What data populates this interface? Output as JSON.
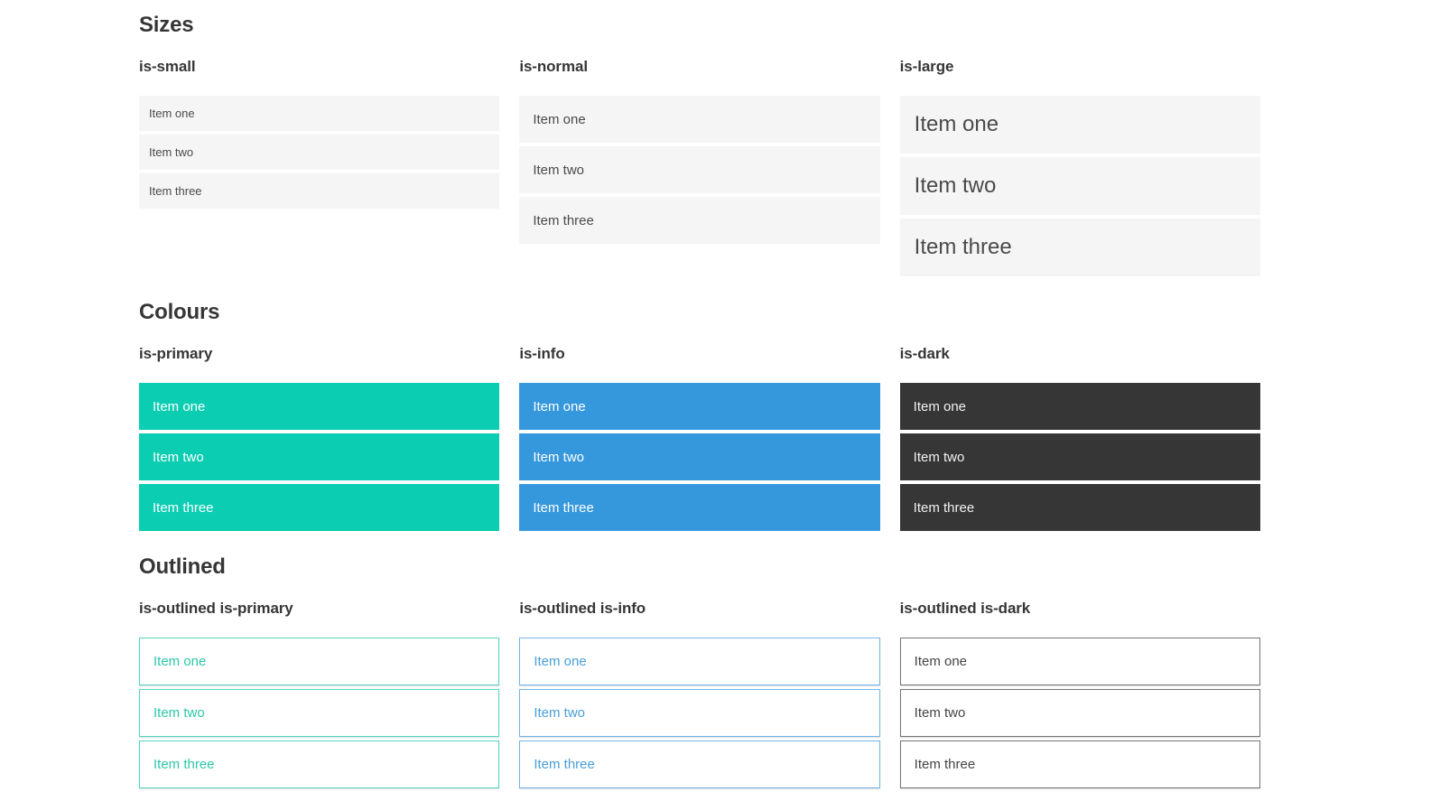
{
  "colors": {
    "primary": "#0acdb2",
    "info": "#3698dc",
    "dark": "#363636",
    "light_item_bg": "#f5f5f5",
    "heading_text": "#363636",
    "item_text": "#4a4a4a",
    "outlined_primary_border": "#56d6c0",
    "outlined_primary_text": "#2cc8a8",
    "outlined_info_border": "#74b6e8",
    "outlined_info_text": "#4a9eda",
    "outlined_dark_border": "#757575",
    "outlined_dark_text": "#444444"
  },
  "sections": [
    {
      "title": "Sizes",
      "groups": [
        {
          "heading": "is-small",
          "items": [
            "Item one",
            "Item two",
            "Item three"
          ]
        },
        {
          "heading": "is-normal",
          "items": [
            "Item one",
            "Item two",
            "Item three"
          ]
        },
        {
          "heading": "is-large",
          "items": [
            "Item one",
            "Item two",
            "Item three"
          ]
        }
      ]
    },
    {
      "title": "Colours",
      "groups": [
        {
          "heading": "is-primary",
          "items": [
            "Item one",
            "Item two",
            "Item three"
          ]
        },
        {
          "heading": "is-info",
          "items": [
            "Item one",
            "Item two",
            "Item three"
          ]
        },
        {
          "heading": "is-dark",
          "items": [
            "Item one",
            "Item two",
            "Item three"
          ]
        }
      ]
    },
    {
      "title": "Outlined",
      "groups": [
        {
          "heading": "is-outlined is-primary",
          "items": [
            "Item one",
            "Item two",
            "Item three"
          ]
        },
        {
          "heading": "is-outlined is-info",
          "items": [
            "Item one",
            "Item two",
            "Item three"
          ]
        },
        {
          "heading": "is-outlined is-dark",
          "items": [
            "Item one",
            "Item two",
            "Item three"
          ]
        }
      ]
    }
  ]
}
